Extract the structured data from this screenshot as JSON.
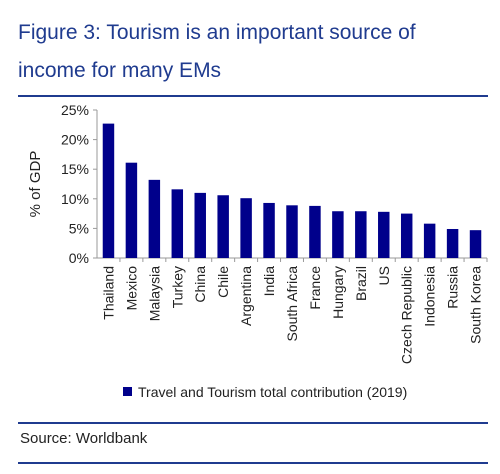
{
  "header": {
    "title_line1": "Figure 3:  Tourism is an important source of",
    "title_line2": "income for many EMs"
  },
  "footer": {
    "source": "Source: Worldbank"
  },
  "colors": {
    "accent": "#1f3b8f",
    "bar": "#00008b"
  },
  "chart_data": {
    "type": "bar",
    "categories": [
      "Thailand",
      "Mexico",
      "Malaysia",
      "Turkey",
      "China",
      "Chile",
      "Argentina",
      "India",
      "South Africa",
      "France",
      "Hungary",
      "Brazil",
      "US",
      "Czech Republic",
      "Indonesia",
      "Russia",
      "South Korea"
    ],
    "series": [
      {
        "name": "Travel and Tourism total contribution (2019)",
        "values": [
          22.7,
          16.1,
          13.2,
          11.6,
          11.0,
          10.6,
          10.1,
          9.3,
          8.9,
          8.8,
          7.9,
          7.9,
          7.8,
          7.5,
          5.8,
          4.9,
          4.7
        ]
      }
    ],
    "ylabel": "% of GDP",
    "ylim": [
      0,
      25
    ],
    "yticks": [
      "0%",
      "5%",
      "10%",
      "15%",
      "20%",
      "25%"
    ],
    "grid": false,
    "legend": "bottom"
  }
}
